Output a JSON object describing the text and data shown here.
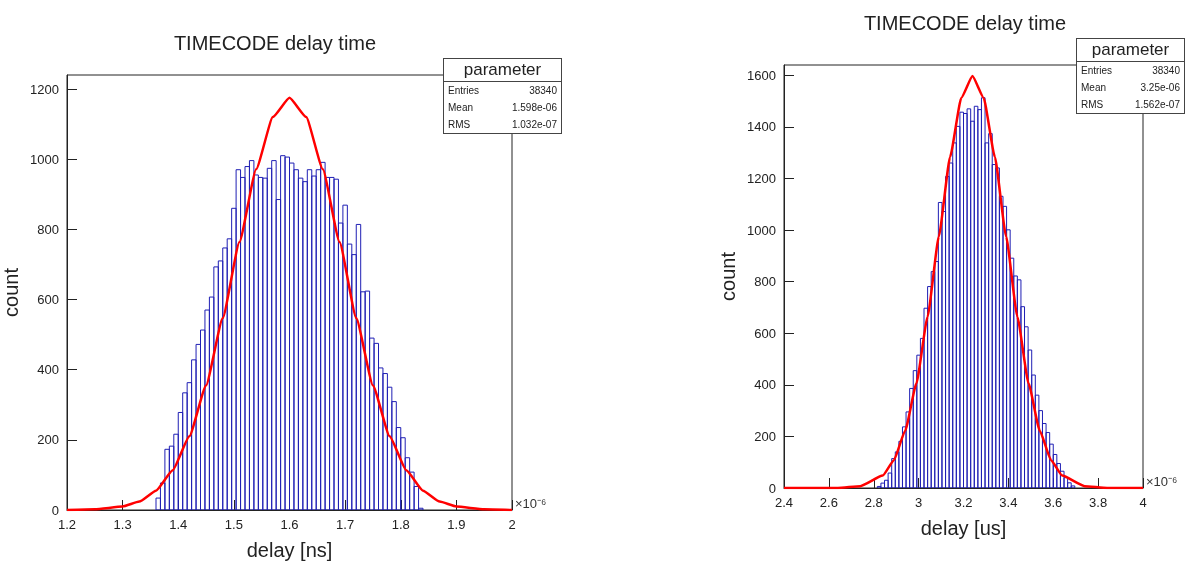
{
  "chart_data": [
    {
      "type": "histogram",
      "title": "TIMECODE delay time",
      "xlabel": "delay [ns]",
      "ylabel": "count",
      "xlim": [
        1.2,
        2
      ],
      "xticks": [
        1.2,
        1.3,
        1.4,
        1.5,
        1.6,
        1.7,
        1.8,
        1.9,
        2
      ],
      "ylim": [
        0,
        1240
      ],
      "yticks": [
        0,
        200,
        400,
        600,
        800,
        1000,
        1200
      ],
      "annotations": [
        "×10⁻⁶",
        "parameter",
        "Entries",
        "38340",
        "Mean",
        "1.598e-06",
        "RMS",
        "1.032e-07"
      ],
      "series": [
        {
          "color": "#1f1fb4",
          "bins": [
            1.36,
            1.368,
            1.376,
            1.384,
            1.392,
            1.4,
            1.408,
            1.416,
            1.424,
            1.432,
            1.44,
            1.448,
            1.456,
            1.464,
            1.472,
            1.48,
            1.488,
            1.496,
            1.504,
            1.512,
            1.52,
            1.528,
            1.536,
            1.544,
            1.552,
            1.56,
            1.568,
            1.576,
            1.584,
            1.592,
            1.6,
            1.608,
            1.616,
            1.624,
            1.632,
            1.64,
            1.648,
            1.656,
            1.664,
            1.672,
            1.68,
            1.688,
            1.696,
            1.704,
            1.712,
            1.72,
            1.728,
            1.736,
            1.744,
            1.752,
            1.76,
            1.768,
            1.776,
            1.784,
            1.792,
            1.8,
            1.808,
            1.816,
            1.824,
            1.832,
            1.84
          ],
          "values": [
            34,
            77,
            173,
            182,
            216,
            278,
            334,
            363,
            428,
            472,
            513,
            570,
            607,
            693,
            710,
            747,
            773,
            860,
            970,
            948,
            979,
            996,
            955,
            948,
            946,
            974,
            996,
            885,
            1010,
            1006,
            989,
            970,
            946,
            936,
            970,
            952,
            970,
            991,
            948,
            948,
            943,
            818,
            869,
            758,
            728,
            814,
            622,
            624,
            490,
            475,
            405,
            389,
            350,
            309,
            235,
            206,
            149,
            108,
            67,
            5
          ]
        },
        {
          "type": "line",
          "color": "#ff0000",
          "x": [
            1.2,
            1.25,
            1.3,
            1.33,
            1.36,
            1.39,
            1.42,
            1.45,
            1.48,
            1.51,
            1.54,
            1.57,
            1.6,
            1.63,
            1.66,
            1.69,
            1.72,
            1.75,
            1.78,
            1.81,
            1.84,
            1.87,
            1.9,
            1.95,
            2
          ],
          "values": [
            0,
            2,
            10,
            24,
            55,
            113,
            210,
            355,
            547,
            764,
            971,
            1120,
            1175,
            1120,
            971,
            764,
            547,
            355,
            210,
            113,
            55,
            24,
            10,
            2,
            0
          ]
        }
      ]
    },
    {
      "type": "histogram",
      "title": "TIMECODE delay time",
      "xlabel": "delay [us]",
      "ylabel": "count",
      "xlim": [
        2.4,
        4
      ],
      "xticks": [
        2.4,
        2.6,
        2.8,
        3,
        3.2,
        3.4,
        3.6,
        3.8,
        4
      ],
      "ylim": [
        0,
        1640
      ],
      "yticks": [
        0,
        200,
        400,
        600,
        800,
        1000,
        1200,
        1400,
        1600
      ],
      "annotations": [
        "×10⁻⁶",
        "parameter",
        "Entries",
        "38340",
        "Mean",
        "3.25e-06",
        "RMS",
        "1.562e-07"
      ],
      "series": [
        {
          "color": "#1f1fb4",
          "bins": [
            2.816,
            2.832,
            2.848,
            2.864,
            2.88,
            2.896,
            2.912,
            2.928,
            2.944,
            2.96,
            2.976,
            2.992,
            3.008,
            3.024,
            3.04,
            3.056,
            3.072,
            3.088,
            3.104,
            3.12,
            3.136,
            3.152,
            3.168,
            3.184,
            3.2,
            3.216,
            3.232,
            3.248,
            3.264,
            3.28,
            3.296,
            3.312,
            3.328,
            3.344,
            3.36,
            3.376,
            3.392,
            3.408,
            3.424,
            3.44,
            3.456,
            3.472,
            3.488,
            3.504,
            3.52,
            3.536,
            3.552,
            3.568,
            3.584,
            3.6,
            3.616,
            3.632,
            3.648,
            3.664,
            3.68,
            3.696
          ],
          "values": [
            6,
            19,
            30,
            58,
            114,
            140,
            181,
            237,
            295,
            386,
            455,
            515,
            580,
            697,
            781,
            839,
            878,
            1107,
            1072,
            1208,
            1260,
            1338,
            1402,
            1457,
            1452,
            1470,
            1422,
            1480,
            1467,
            1513,
            1338,
            1374,
            1254,
            1241,
            1131,
            1092,
            1001,
            891,
            822,
            807,
            703,
            625,
            535,
            438,
            360,
            300,
            250,
            215,
            170,
            130,
            95,
            65,
            40,
            20,
            8
          ]
        },
        {
          "type": "line",
          "color": "#ff0000",
          "x": [
            2.4,
            2.64,
            2.74,
            2.84,
            2.89,
            2.94,
            2.99,
            3.04,
            3.09,
            3.14,
            3.19,
            3.24,
            3.29,
            3.34,
            3.39,
            3.44,
            3.49,
            3.54,
            3.59,
            3.64,
            3.74,
            3.84,
            4
          ],
          "values": [
            0,
            0,
            7,
            48,
            108,
            222,
            405,
            664,
            975,
            1283,
            1512,
            1597,
            1512,
            1283,
            975,
            664,
            405,
            222,
            108,
            48,
            7,
            0,
            0
          ]
        }
      ]
    }
  ]
}
